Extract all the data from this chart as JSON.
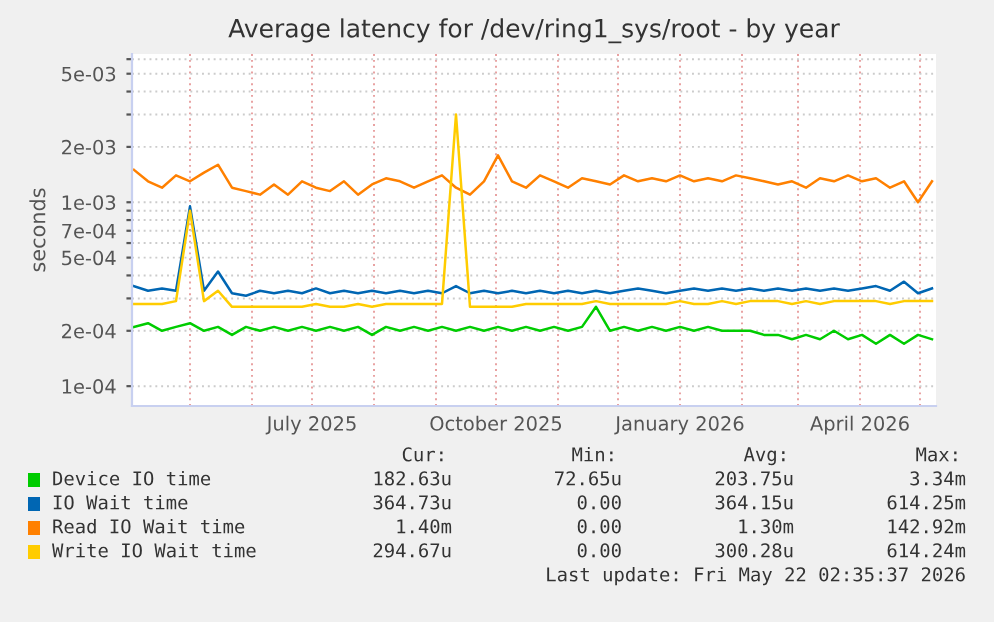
{
  "chart_data": {
    "type": "line",
    "title": "Average latency for /dev/ring1_sys/root - by year",
    "ylabel": "seconds",
    "log": "y",
    "grid": true,
    "legend": "bottom",
    "marker": "none",
    "line_style": "solid",
    "x": [
      "2025-04-03",
      "2025-04-10",
      "2025-04-17",
      "2025-04-24",
      "2025-05-01",
      "2025-05-08",
      "2025-05-15",
      "2025-05-22",
      "2025-05-29",
      "2025-06-05",
      "2025-06-12",
      "2025-06-19",
      "2025-06-26",
      "2025-07-03",
      "2025-07-10",
      "2025-07-17",
      "2025-07-24",
      "2025-07-31",
      "2025-08-07",
      "2025-08-14",
      "2025-08-21",
      "2025-08-28",
      "2025-09-04",
      "2025-09-11",
      "2025-09-18",
      "2025-09-25",
      "2025-10-02",
      "2025-10-09",
      "2025-10-16",
      "2025-10-23",
      "2025-10-30",
      "2025-11-06",
      "2025-11-13",
      "2025-11-20",
      "2025-11-27",
      "2025-12-04",
      "2025-12-11",
      "2025-12-18",
      "2025-12-25",
      "2026-01-01",
      "2026-01-08",
      "2026-01-15",
      "2026-01-22",
      "2026-01-29",
      "2026-02-05",
      "2026-02-12",
      "2026-02-19",
      "2026-02-26",
      "2026-03-05",
      "2026-03-12",
      "2026-03-19",
      "2026-03-26",
      "2026-04-02",
      "2026-04-09",
      "2026-04-16",
      "2026-04-23",
      "2026-04-30",
      "2026-05-07"
    ],
    "xlim": [
      "2025-04-02",
      "2026-05-09"
    ],
    "xticks": [
      {
        "value": "2025-05-01",
        "label": null
      },
      {
        "value": "2025-06-01",
        "label": null
      },
      {
        "value": "2025-07-01",
        "label": "July 2025"
      },
      {
        "value": "2025-08-01",
        "label": null
      },
      {
        "value": "2025-09-01",
        "label": null
      },
      {
        "value": "2025-10-01",
        "label": "October 2025"
      },
      {
        "value": "2025-11-01",
        "label": null
      },
      {
        "value": "2025-12-01",
        "label": null
      },
      {
        "value": "2026-01-01",
        "label": "January 2026"
      },
      {
        "value": "2026-02-01",
        "label": null
      },
      {
        "value": "2026-03-01",
        "label": null
      },
      {
        "value": "2026-04-01",
        "label": "April 2026"
      },
      {
        "value": "2026-05-01",
        "label": null
      }
    ],
    "ylim": [
      7.8e-05,
      0.0064
    ],
    "yticks": [
      {
        "value": 0.0001,
        "label": "1e-04"
      },
      {
        "value": 0.0002,
        "label": "2e-04"
      },
      {
        "value": 0.0003,
        "label": null
      },
      {
        "value": 0.0004,
        "label": null
      },
      {
        "value": 0.0005,
        "label": "5e-04"
      },
      {
        "value": 0.0006,
        "label": null
      },
      {
        "value": 0.0007,
        "label": "7e-04"
      },
      {
        "value": 0.0008,
        "label": null
      },
      {
        "value": 0.0009,
        "label": null
      },
      {
        "value": 0.001,
        "label": "1e-03"
      },
      {
        "value": 0.002,
        "label": "2e-03"
      },
      {
        "value": 0.003,
        "label": null
      },
      {
        "value": 0.004,
        "label": null
      },
      {
        "value": 0.005,
        "label": "5e-03"
      },
      {
        "value": 0.006,
        "label": null
      }
    ],
    "series": [
      {
        "name": "Device IO time",
        "color": "#00cc00",
        "values": [
          0.00021,
          0.00022,
          0.0002,
          0.00021,
          0.00022,
          0.0002,
          0.00021,
          0.00019,
          0.00021,
          0.0002,
          0.00021,
          0.0002,
          0.00021,
          0.0002,
          0.00021,
          0.0002,
          0.00021,
          0.00019,
          0.00021,
          0.0002,
          0.00021,
          0.0002,
          0.00021,
          0.0002,
          0.00021,
          0.0002,
          0.00021,
          0.0002,
          0.00021,
          0.0002,
          0.00021,
          0.0002,
          0.00021,
          0.00027,
          0.0002,
          0.00021,
          0.0002,
          0.00021,
          0.0002,
          0.00021,
          0.0002,
          0.00021,
          0.0002,
          0.0002,
          0.0002,
          0.00019,
          0.00019,
          0.00018,
          0.00019,
          0.00018,
          0.0002,
          0.00018,
          0.00019,
          0.00017,
          0.00019,
          0.00017,
          0.00019,
          0.00018
        ]
      },
      {
        "name": "IO Wait time",
        "color": "#0066b3",
        "values": [
          0.00035,
          0.00033,
          0.00034,
          0.00033,
          0.00095,
          0.00033,
          0.00042,
          0.00032,
          0.00031,
          0.00033,
          0.00032,
          0.00033,
          0.00032,
          0.00034,
          0.00032,
          0.00033,
          0.00032,
          0.00033,
          0.00032,
          0.00033,
          0.00032,
          0.00033,
          0.00032,
          0.00035,
          0.00032,
          0.00033,
          0.00032,
          0.00033,
          0.00032,
          0.00033,
          0.00032,
          0.00033,
          0.00032,
          0.00033,
          0.00032,
          0.00033,
          0.00034,
          0.00033,
          0.00032,
          0.00033,
          0.00034,
          0.00033,
          0.00034,
          0.00033,
          0.00034,
          0.00033,
          0.00034,
          0.00033,
          0.00034,
          0.00033,
          0.00034,
          0.00033,
          0.00034,
          0.00035,
          0.00033,
          0.00037,
          0.00032,
          0.00034
        ]
      },
      {
        "name": "Read IO Wait time",
        "color": "#ff8000",
        "values": [
          0.0015,
          0.0013,
          0.0012,
          0.0014,
          0.0013,
          0.00145,
          0.0016,
          0.0012,
          0.00115,
          0.0011,
          0.00125,
          0.0011,
          0.0013,
          0.0012,
          0.00115,
          0.0013,
          0.0011,
          0.00125,
          0.00135,
          0.0013,
          0.0012,
          0.0013,
          0.0014,
          0.0012,
          0.0011,
          0.0013,
          0.0018,
          0.0013,
          0.0012,
          0.0014,
          0.0013,
          0.0012,
          0.00135,
          0.0013,
          0.00125,
          0.0014,
          0.0013,
          0.00135,
          0.0013,
          0.0014,
          0.0013,
          0.00135,
          0.0013,
          0.0014,
          0.00135,
          0.0013,
          0.00125,
          0.0013,
          0.0012,
          0.00135,
          0.0013,
          0.0014,
          0.0013,
          0.00135,
          0.0012,
          0.0013,
          0.001,
          0.0013
        ]
      },
      {
        "name": "Write IO Wait time",
        "color": "#ffcc00",
        "values": [
          0.00028,
          0.00028,
          0.00028,
          0.00029,
          0.0009,
          0.00029,
          0.00033,
          0.00027,
          0.00027,
          0.00027,
          0.00027,
          0.00027,
          0.00027,
          0.00028,
          0.00027,
          0.00027,
          0.00028,
          0.00027,
          0.00028,
          0.00028,
          0.00028,
          0.00028,
          0.00028,
          0.003,
          0.00027,
          0.00027,
          0.00027,
          0.00027,
          0.00028,
          0.00028,
          0.00028,
          0.00028,
          0.00028,
          0.00029,
          0.00028,
          0.00028,
          0.00028,
          0.00028,
          0.00028,
          0.00029,
          0.00028,
          0.00028,
          0.00029,
          0.00028,
          0.00029,
          0.00029,
          0.00029,
          0.00028,
          0.00029,
          0.00028,
          0.00029,
          0.00029,
          0.00029,
          0.00029,
          0.00028,
          0.00029,
          0.00029,
          0.00029
        ]
      }
    ],
    "annotations": [
      "Cur:",
      "Min:",
      "Avg:",
      "Max:",
      "182.63u",
      "72.65u",
      "203.75u",
      "3.34m",
      "364.73u",
      "0.00",
      "364.15u",
      "614.25m",
      "1.40m",
      "0.00",
      "1.30m",
      "142.92m",
      "294.67u",
      "0.00",
      "300.28u",
      "614.24m",
      "Last update: Fri May 22 02:35:37 2026"
    ]
  }
}
